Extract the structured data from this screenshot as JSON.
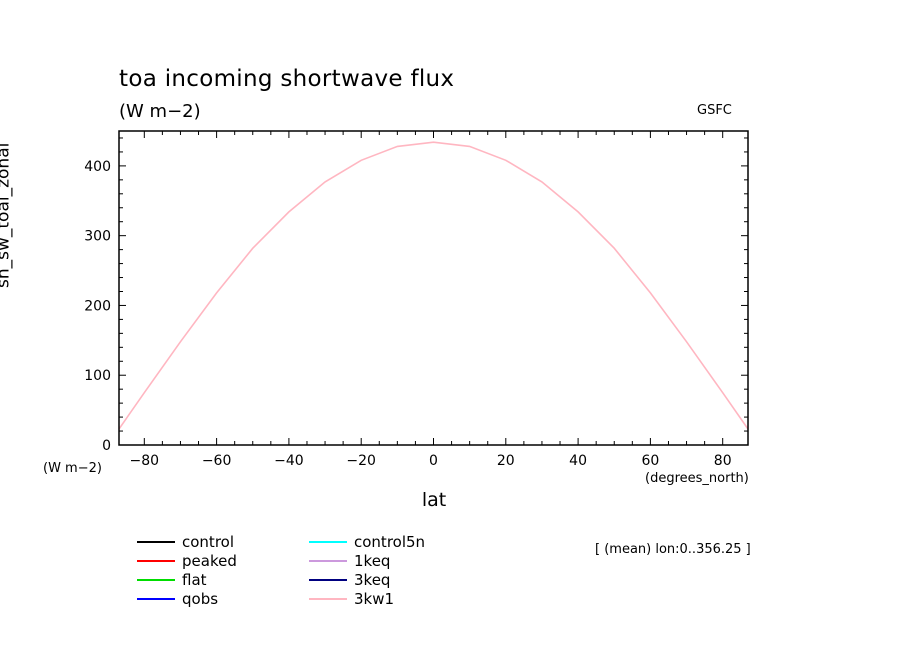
{
  "chart_data": {
    "type": "line",
    "title": "toa incoming shortwave flux",
    "units": "(W m−2)",
    "source": "GSFC",
    "xlabel": "lat",
    "xunits": "(degrees_north)",
    "ylabel": "sh_sw_toai_zonal",
    "yunits": "(W m−2)",
    "annotation": "[ (mean) lon:0..356.25 ]",
    "xlim": [
      -87,
      87
    ],
    "ylim": [
      0,
      450
    ],
    "xticks": [
      -80,
      -60,
      -40,
      -20,
      0,
      20,
      40,
      60,
      80
    ],
    "yticks": [
      0,
      100,
      200,
      300,
      400
    ],
    "x_tick_labels": [
      "−80",
      "−60",
      "−40",
      "−20",
      "0",
      "20",
      "40",
      "60",
      "80"
    ],
    "y_tick_labels": [
      "0",
      "100",
      "200",
      "300",
      "400"
    ],
    "grid": false,
    "series": [
      {
        "name": "control",
        "color": "#000000",
        "x": [],
        "values": []
      },
      {
        "name": "peaked",
        "color": "#ff0000",
        "x": [],
        "values": []
      },
      {
        "name": "flat",
        "color": "#00dd00",
        "x": [],
        "values": []
      },
      {
        "name": "qobs",
        "color": "#0000ff",
        "x": [],
        "values": []
      },
      {
        "name": "control5n",
        "color": "#00ffff",
        "x": [],
        "values": []
      },
      {
        "name": "1keq",
        "color": "#cc99dd",
        "x": [],
        "values": []
      },
      {
        "name": "3keq",
        "color": "#000080",
        "x": [],
        "values": []
      },
      {
        "name": "3kw1",
        "color": "#ffb6c1",
        "x": [
          -87,
          -80,
          -70,
          -60,
          -50,
          -40,
          -30,
          -20,
          -10,
          0,
          10,
          20,
          30,
          40,
          50,
          60,
          70,
          80,
          87
        ],
        "values": [
          23,
          75,
          148,
          218,
          282,
          334,
          377,
          408,
          428,
          434,
          428,
          408,
          377,
          334,
          282,
          218,
          148,
          75,
          23
        ]
      }
    ]
  }
}
